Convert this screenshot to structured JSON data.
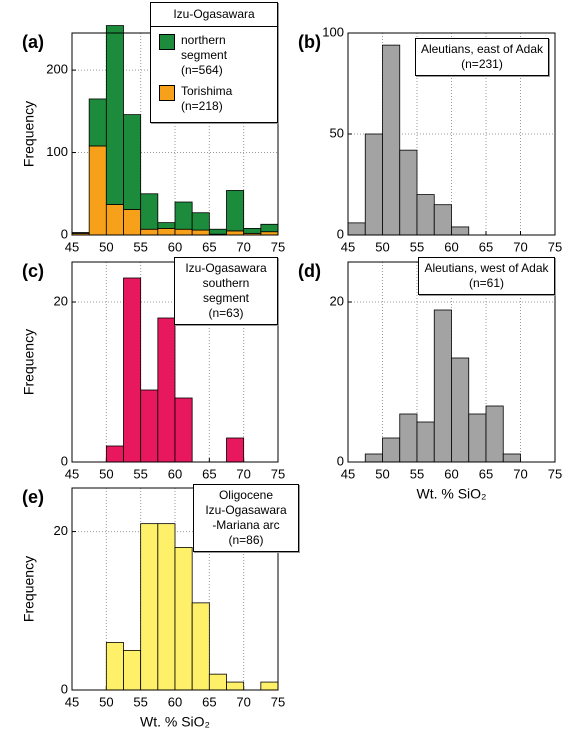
{
  "chart_data": [
    {
      "type": "histogram",
      "panel": "(a)",
      "ylabel": "Frequency",
      "stacked": true,
      "legend_title": "Izu-Ogasawara",
      "bins": [
        45,
        47.5,
        50,
        52.5,
        55,
        57.5,
        60,
        62.5,
        65,
        67.5,
        70,
        72.5,
        75
      ],
      "series": [
        {
          "name": "northern segment (n=564)",
          "color": "#1c8c3c",
          "values": [
            1,
            57,
            217,
            115,
            43,
            7,
            33,
            21,
            6,
            49,
            6,
            9
          ]
        },
        {
          "name": "Torishima (n=218)",
          "color": "#f7a11a",
          "values": [
            2,
            108,
            37,
            31,
            7,
            8,
            7,
            6,
            1,
            5,
            2,
            4
          ]
        }
      ],
      "xlim": [
        45,
        75
      ],
      "xticks": [
        45,
        50,
        55,
        60,
        65,
        70,
        75
      ],
      "ylim": [
        0,
        245
      ],
      "yticks": [
        0,
        100,
        200
      ],
      "grid": true
    },
    {
      "type": "histogram",
      "panel": "(b)",
      "annotation": [
        "Aleutians, east of Adak",
        "(n=231)"
      ],
      "bins": [
        45,
        47.5,
        50,
        52.5,
        55,
        57.5,
        60,
        62.5,
        65,
        67.5,
        70,
        72.5,
        75
      ],
      "color": "#a3a3a3",
      "values": [
        6,
        50,
        94,
        42,
        20,
        15,
        4,
        0,
        0,
        0,
        0,
        0
      ],
      "xlim": [
        45,
        75
      ],
      "xticks": [
        45,
        50,
        55,
        60,
        65,
        70,
        75
      ],
      "ylim": [
        0,
        100
      ],
      "yticks": [
        0,
        50,
        100
      ],
      "grid": true
    },
    {
      "type": "histogram",
      "panel": "(c)",
      "ylabel": "Frequency",
      "annotation": [
        "Izu-Ogasawara",
        "southern segment",
        "(n=63)"
      ],
      "bins": [
        45,
        47.5,
        50,
        52.5,
        55,
        57.5,
        60,
        62.5,
        65,
        67.5,
        70,
        72.5,
        75
      ],
      "color": "#e8185e",
      "values": [
        0,
        0,
        2,
        23,
        9,
        18,
        8,
        0,
        0,
        3,
        0,
        0
      ],
      "xlim": [
        45,
        75
      ],
      "xticks": [
        45,
        50,
        55,
        60,
        65,
        70,
        75
      ],
      "ylim": [
        0,
        25
      ],
      "yticks": [
        0,
        20
      ],
      "grid": true
    },
    {
      "type": "histogram",
      "panel": "(d)",
      "xlabel": "Wt. % SiO₂",
      "annotation": [
        "Aleutians, west of Adak",
        "(n=61)"
      ],
      "bins": [
        45,
        47.5,
        50,
        52.5,
        55,
        57.5,
        60,
        62.5,
        65,
        67.5,
        70,
        72.5,
        75
      ],
      "color": "#a3a3a3",
      "values": [
        0,
        1,
        3,
        6,
        5,
        19,
        13,
        6,
        7,
        1,
        0,
        0
      ],
      "xlim": [
        45,
        75
      ],
      "xticks": [
        45,
        50,
        55,
        60,
        65,
        70,
        75
      ],
      "ylim": [
        0,
        25
      ],
      "yticks": [
        0,
        20
      ],
      "grid": true
    },
    {
      "type": "histogram",
      "panel": "(e)",
      "ylabel": "Frequency",
      "xlabel": "Wt. % SiO₂",
      "annotation": [
        "Oligocene",
        "Izu-Ogasawara",
        "-Mariana arc",
        "(n=86)"
      ],
      "bins": [
        45,
        47.5,
        50,
        52.5,
        55,
        57.5,
        60,
        62.5,
        65,
        67.5,
        70,
        72.5,
        75
      ],
      "color": "#fff06a",
      "values": [
        0,
        0,
        6,
        5,
        21,
        21,
        18,
        11,
        2,
        1,
        0,
        1
      ],
      "xlim": [
        45,
        75
      ],
      "xticks": [
        45,
        50,
        55,
        60,
        65,
        70,
        75
      ],
      "ylim": [
        0,
        25.5
      ],
      "yticks": [
        0,
        20
      ],
      "grid": true
    }
  ]
}
